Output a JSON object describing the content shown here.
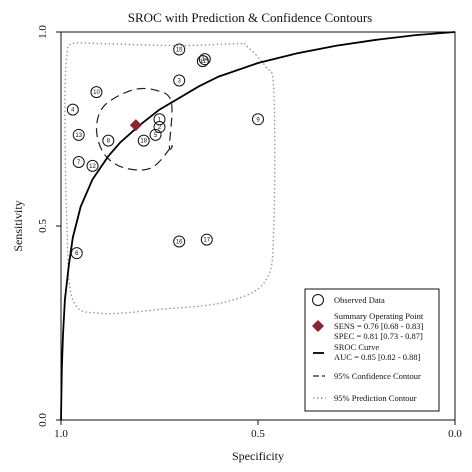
{
  "chart_data": {
    "type": "scatter",
    "title": "SROC with Prediction & Confidence Contours",
    "xlabel": "Specificity",
    "ylabel": "Sensitivity",
    "x_axis_reversed": true,
    "xlim": [
      1.0,
      0.0
    ],
    "ylim": [
      0.0,
      1.0
    ],
    "x_ticks": [
      "1.0",
      "0.5",
      "0.0"
    ],
    "y_ticks": [
      "0.0",
      "0.5",
      "1.0"
    ],
    "grid": false,
    "legend_position": "bottom-right",
    "studies": [
      {
        "id": "1",
        "spec": 0.75,
        "sens": 0.775
      },
      {
        "id": "2",
        "spec": 0.75,
        "sens": 0.755
      },
      {
        "id": "3",
        "spec": 0.7,
        "sens": 0.875
      },
      {
        "id": "4",
        "spec": 0.97,
        "sens": 0.8
      },
      {
        "id": "5",
        "spec": 0.76,
        "sens": 0.735
      },
      {
        "id": "6",
        "spec": 0.96,
        "sens": 0.43
      },
      {
        "id": "7",
        "spec": 0.955,
        "sens": 0.665
      },
      {
        "id": "8",
        "spec": 0.88,
        "sens": 0.72
      },
      {
        "id": "9",
        "spec": 0.5,
        "sens": 0.775
      },
      {
        "id": "10",
        "spec": 0.91,
        "sens": 0.845
      },
      {
        "id": "11",
        "spec": 0.64,
        "sens": 0.925
      },
      {
        "id": "12",
        "spec": 0.92,
        "sens": 0.655
      },
      {
        "id": "13",
        "spec": 0.955,
        "sens": 0.735
      },
      {
        "id": "14",
        "spec": 0.635,
        "sens": 0.93
      },
      {
        "id": "15",
        "spec": 0.7,
        "sens": 0.955
      },
      {
        "id": "16",
        "spec": 0.7,
        "sens": 0.46
      },
      {
        "id": "17",
        "spec": 0.63,
        "sens": 0.465
      },
      {
        "id": "18",
        "spec": 0.79,
        "sens": 0.72
      }
    ],
    "summary_point": {
      "spec": 0.81,
      "sens": 0.76
    },
    "sroc_auc": 0.85,
    "sroc_curve": [
      [
        1.0,
        0.0
      ],
      [
        0.998,
        0.13
      ],
      [
        0.995,
        0.22
      ],
      [
        0.99,
        0.31
      ],
      [
        0.98,
        0.4
      ],
      [
        0.97,
        0.47
      ],
      [
        0.95,
        0.55
      ],
      [
        0.92,
        0.62
      ],
      [
        0.88,
        0.68
      ],
      [
        0.85,
        0.715
      ],
      [
        0.8,
        0.76
      ],
      [
        0.75,
        0.8
      ],
      [
        0.7,
        0.83
      ],
      [
        0.65,
        0.86
      ],
      [
        0.6,
        0.885
      ],
      [
        0.5,
        0.92
      ],
      [
        0.4,
        0.945
      ],
      [
        0.3,
        0.965
      ],
      [
        0.2,
        0.98
      ],
      [
        0.1,
        0.992
      ],
      [
        0.0,
        1.0
      ]
    ],
    "confidence_contour": [
      [
        0.72,
        0.705
      ],
      [
        0.725,
        0.705
      ],
      [
        0.72,
        0.82
      ],
      [
        0.76,
        0.85
      ],
      [
        0.82,
        0.85
      ],
      [
        0.89,
        0.81
      ],
      [
        0.91,
        0.75
      ],
      [
        0.89,
        0.685
      ],
      [
        0.84,
        0.65
      ],
      [
        0.77,
        0.65
      ]
    ],
    "prediction_contour": [
      [
        0.97,
        0.97
      ],
      [
        0.9,
        0.97
      ],
      [
        0.7,
        0.965
      ],
      [
        0.55,
        0.97
      ],
      [
        0.53,
        0.965
      ],
      [
        0.48,
        0.91
      ],
      [
        0.46,
        0.85
      ],
      [
        0.46,
        0.5
      ],
      [
        0.48,
        0.36
      ],
      [
        0.58,
        0.305
      ],
      [
        0.75,
        0.285
      ],
      [
        0.9,
        0.275
      ],
      [
        0.97,
        0.31
      ],
      [
        0.985,
        0.5
      ],
      [
        0.99,
        0.8
      ],
      [
        0.985,
        0.94
      ]
    ],
    "legend": {
      "observed": "Observed Data",
      "summary_line1": "Summary Operating Point",
      "summary_line2": "SENS = 0.76 [0.68 - 0.83]",
      "summary_line3": "SPEC = 0.81 [0.73 - 0.87]",
      "sroc_line1": "SROC Curve",
      "sroc_line2": "AUC = 0.85 [0.82 - 0.88]",
      "confidence": "95% Confidence Contour",
      "prediction": "95% Prediction Contour"
    },
    "colors": {
      "summary": "#8b2332",
      "line": "#000000",
      "prediction": "#9a9a9a"
    }
  }
}
